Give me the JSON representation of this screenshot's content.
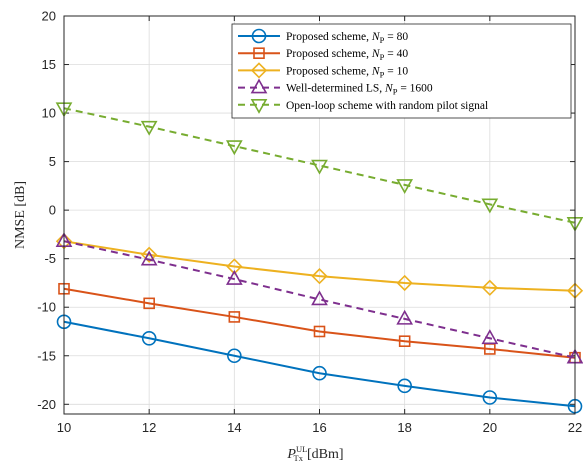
{
  "chart_data": {
    "type": "line",
    "xlabel": {
      "main": "P",
      "sup": "UL",
      "sub": "Tx",
      "unit": "[dBm]"
    },
    "ylabel": "NMSE [dB]",
    "xlim": [
      10,
      22
    ],
    "ylim": [
      -21,
      20
    ],
    "xticks": [
      10,
      12,
      14,
      16,
      18,
      20,
      22
    ],
    "yticks": [
      20,
      15,
      10,
      5,
      0,
      -5,
      -10,
      -15,
      -20
    ],
    "ytick_labels": [
      "20",
      "15",
      "10",
      "5",
      "0",
      "-5",
      "-10",
      "-15",
      "-20"
    ],
    "grid": true,
    "legend_position": "top-right",
    "x": [
      10,
      12,
      14,
      16,
      18,
      20,
      22
    ],
    "series": [
      {
        "name": "Proposed scheme, ",
        "name_math": {
          "var": "N",
          "sub": "P",
          "rest": " = 80"
        },
        "values": [
          -11.5,
          -13.2,
          -15.0,
          -16.8,
          -18.1,
          -19.3,
          -20.2
        ],
        "color": "#0072BD",
        "marker": "circle",
        "dash": "solid"
      },
      {
        "name": "Proposed scheme, ",
        "name_math": {
          "var": "N",
          "sub": "P",
          "rest": " = 40"
        },
        "values": [
          -8.1,
          -9.6,
          -11.0,
          -12.5,
          -13.5,
          -14.3,
          -15.2
        ],
        "color": "#D95319",
        "marker": "square",
        "dash": "solid"
      },
      {
        "name": "Proposed scheme, ",
        "name_math": {
          "var": "N",
          "sub": "P",
          "rest": " = 10"
        },
        "values": [
          -3.2,
          -4.6,
          -5.8,
          -6.8,
          -7.5,
          -8.0,
          -8.3
        ],
        "color": "#EDB120",
        "marker": "diamond",
        "dash": "solid"
      },
      {
        "name": "Well-determined LS, ",
        "name_math": {
          "var": "N",
          "sub": "P",
          "rest": " = 1600"
        },
        "values": [
          -3.2,
          -5.1,
          -7.1,
          -9.2,
          -11.2,
          -13.2,
          -15.2
        ],
        "color": "#7E2F8E",
        "marker": "triangle-up",
        "dash": "dashed"
      },
      {
        "name": "Open-loop scheme with random pilot signal",
        "name_math": null,
        "values": [
          10.5,
          8.6,
          6.6,
          4.6,
          2.6,
          0.6,
          -1.3
        ],
        "color": "#77AC30",
        "marker": "triangle-down",
        "dash": "dashed"
      }
    ]
  }
}
